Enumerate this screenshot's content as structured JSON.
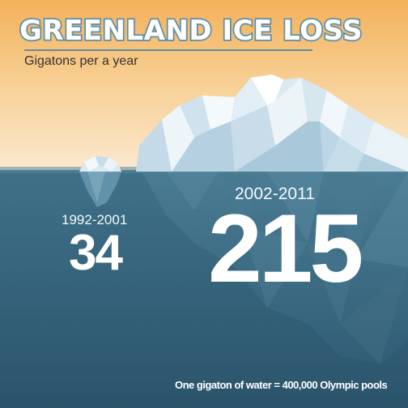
{
  "header": {
    "title": "GREENLAND ICE LOSS",
    "subtitle": "Gigatons per a year"
  },
  "periods": [
    {
      "label": "1992-2001",
      "value": "34"
    },
    {
      "label": "2002-2011",
      "value": "215"
    }
  ],
  "footer": {
    "note": "One gigaton of water = 400,000 Olympic pools"
  },
  "colors": {
    "sky_top": "#f3b15a",
    "sky_bottom": "#fbe9cf",
    "water_top": "#3d6f86",
    "water_bottom": "#2d566d",
    "title_outline": "#5d8fa8",
    "ice_light": "#eaf3f8",
    "ice_mid": "#b7d4e4"
  }
}
